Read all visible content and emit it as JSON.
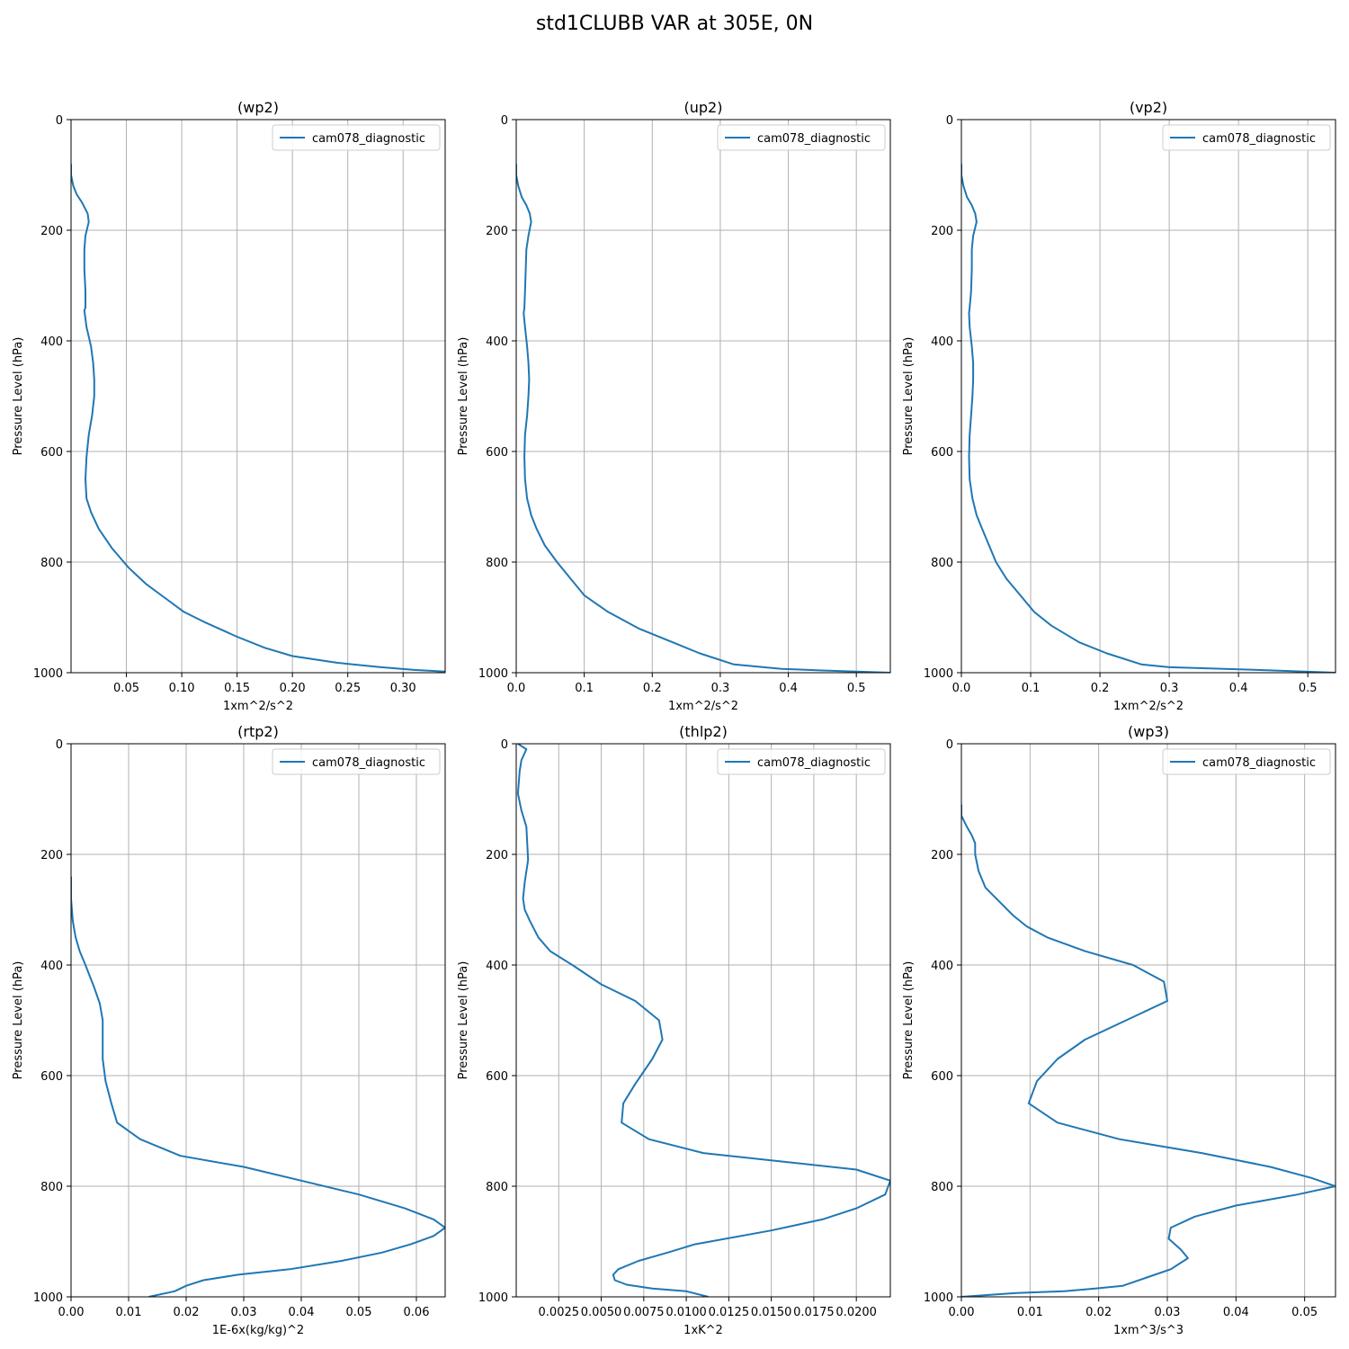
{
  "figure": {
    "title": "std1CLUBB VAR at 305E, 0N"
  },
  "chart_data": [
    {
      "type": "line",
      "title": "(wp2)",
      "xlabel": "1xm^2/s^2",
      "ylabel": "Pressure Level (hPa)",
      "xlim": [
        0,
        0.338
      ],
      "ylim": [
        1000,
        0
      ],
      "xticks": [
        0.05,
        0.1,
        0.15,
        0.2,
        0.25,
        0.3
      ],
      "xtick_labels": [
        "0.05",
        "0.10",
        "0.15",
        "0.20",
        "0.25",
        "0.30"
      ],
      "yticks": [
        0,
        200,
        400,
        600,
        800,
        1000
      ],
      "ytick_labels": [
        "0",
        "200",
        "400",
        "600",
        "800",
        "1000"
      ],
      "grid": true,
      "legend": "upper right",
      "series": [
        {
          "name": "cam078_diagnostic",
          "x": [
            0.0,
            0.0,
            0.002,
            0.005,
            0.01,
            0.015,
            0.016,
            0.013,
            0.012,
            0.012,
            0.013,
            0.013,
            0.012,
            0.014,
            0.018,
            0.02,
            0.021,
            0.021,
            0.019,
            0.016,
            0.014,
            0.013,
            0.014,
            0.018,
            0.025,
            0.037,
            0.052,
            0.068,
            0.085,
            0.102,
            0.122,
            0.15,
            0.175,
            0.2,
            0.24,
            0.28,
            0.31,
            0.338,
            0.332
          ],
          "y": [
            80,
            100,
            120,
            135,
            150,
            170,
            185,
            210,
            235,
            270,
            310,
            340,
            345,
            375,
            410,
            440,
            470,
            500,
            535,
            570,
            610,
            650,
            685,
            710,
            740,
            775,
            810,
            840,
            865,
            890,
            910,
            935,
            955,
            970,
            982,
            990,
            995,
            998,
            1000
          ]
        }
      ]
    },
    {
      "type": "line",
      "title": "(up2)",
      "xlabel": "1xm^2/s^2",
      "ylabel": "Pressure Level (hPa)",
      "xlim": [
        0,
        0.55
      ],
      "ylim": [
        1000,
        0
      ],
      "xticks": [
        0.0,
        0.1,
        0.2,
        0.3,
        0.4,
        0.5
      ],
      "xtick_labels": [
        "0.0",
        "0.1",
        "0.2",
        "0.3",
        "0.4",
        "0.5"
      ],
      "yticks": [
        0,
        200,
        400,
        600,
        800,
        1000
      ],
      "ytick_labels": [
        "0",
        "200",
        "400",
        "600",
        "800",
        "1000"
      ],
      "grid": true,
      "legend": "upper right",
      "series": [
        {
          "name": "cam078_diagnostic",
          "x": [
            0.0,
            0.0,
            0.003,
            0.008,
            0.015,
            0.02,
            0.022,
            0.018,
            0.015,
            0.014,
            0.013,
            0.012,
            0.011,
            0.013,
            0.016,
            0.018,
            0.019,
            0.018,
            0.016,
            0.013,
            0.012,
            0.013,
            0.016,
            0.022,
            0.03,
            0.042,
            0.06,
            0.08,
            0.1,
            0.135,
            0.18,
            0.23,
            0.27,
            0.32,
            0.39,
            0.45,
            0.5,
            0.55
          ],
          "y": [
            80,
            100,
            120,
            140,
            155,
            170,
            185,
            210,
            235,
            270,
            310,
            340,
            350,
            375,
            410,
            440,
            470,
            500,
            535,
            570,
            610,
            650,
            685,
            715,
            740,
            770,
            800,
            830,
            860,
            890,
            920,
            945,
            965,
            985,
            993,
            996,
            998,
            1000
          ]
        }
      ]
    },
    {
      "type": "line",
      "title": "(vp2)",
      "xlabel": "1xm^2/s^2",
      "ylabel": "Pressure Level (hPa)",
      "xlim": [
        0,
        0.54
      ],
      "ylim": [
        1000,
        0
      ],
      "xticks": [
        0.0,
        0.1,
        0.2,
        0.3,
        0.4,
        0.5
      ],
      "xtick_labels": [
        "0.0",
        "0.1",
        "0.2",
        "0.3",
        "0.4",
        "0.5"
      ],
      "yticks": [
        0,
        200,
        400,
        600,
        800,
        1000
      ],
      "ytick_labels": [
        "0",
        "200",
        "400",
        "600",
        "800",
        "1000"
      ],
      "grid": true,
      "legend": "upper right",
      "series": [
        {
          "name": "cam078_diagnostic",
          "x": [
            0.0,
            0.0,
            0.003,
            0.008,
            0.015,
            0.02,
            0.022,
            0.017,
            0.015,
            0.015,
            0.014,
            0.012,
            0.011,
            0.012,
            0.015,
            0.017,
            0.017,
            0.016,
            0.014,
            0.012,
            0.011,
            0.012,
            0.016,
            0.022,
            0.03,
            0.04,
            0.05,
            0.065,
            0.085,
            0.105,
            0.13,
            0.17,
            0.21,
            0.26,
            0.3,
            0.38,
            0.45,
            0.54
          ],
          "y": [
            80,
            100,
            120,
            140,
            155,
            170,
            185,
            210,
            235,
            270,
            310,
            340,
            350,
            375,
            410,
            440,
            470,
            500,
            535,
            570,
            610,
            650,
            685,
            715,
            740,
            770,
            800,
            830,
            860,
            890,
            915,
            945,
            965,
            985,
            990,
            993,
            996,
            1000
          ]
        }
      ]
    },
    {
      "type": "line",
      "title": "(rtp2)",
      "xlabel": "1E-6x(kg/kg)^2",
      "ylabel": "Pressure Level (hPa)",
      "xlim": [
        0,
        0.065
      ],
      "ylim": [
        1000,
        0
      ],
      "xticks": [
        0.0,
        0.01,
        0.02,
        0.03,
        0.04,
        0.05,
        0.06
      ],
      "xtick_labels": [
        "0.00",
        "0.01",
        "0.02",
        "0.03",
        "0.04",
        "0.05",
        "0.06"
      ],
      "yticks": [
        0,
        200,
        400,
        600,
        800,
        1000
      ],
      "ytick_labels": [
        "0",
        "200",
        "400",
        "600",
        "800",
        "1000"
      ],
      "grid": true,
      "legend": "upper right",
      "series": [
        {
          "name": "cam078_diagnostic",
          "x": [
            0.0,
            0.0,
            0.0003,
            0.0008,
            0.0015,
            0.0025,
            0.004,
            0.005,
            0.0055,
            0.0055,
            0.0055,
            0.006,
            0.007,
            0.008,
            0.012,
            0.019,
            0.03,
            0.04,
            0.05,
            0.058,
            0.063,
            0.065,
            0.063,
            0.059,
            0.054,
            0.047,
            0.038,
            0.029,
            0.023,
            0.02,
            0.018,
            0.0135
          ],
          "y": [
            240,
            280,
            320,
            350,
            375,
            400,
            440,
            470,
            500,
            535,
            570,
            610,
            650,
            685,
            715,
            745,
            765,
            790,
            815,
            840,
            860,
            875,
            890,
            905,
            920,
            935,
            950,
            960,
            970,
            980,
            990,
            1000
          ]
        }
      ]
    },
    {
      "type": "line",
      "title": "(thlp2)",
      "xlabel": "1xK^2",
      "ylabel": "Pressure Level (hPa)",
      "xlim": [
        0.0,
        0.022
      ],
      "ylim": [
        1000,
        0
      ],
      "xticks": [
        0.0025,
        0.005,
        0.0075,
        0.01,
        0.0125,
        0.015,
        0.0175,
        0.02
      ],
      "xtick_labels": [
        "0.0025",
        "0.0050",
        "0.0075",
        "0.0100",
        "0.0125",
        "0.0150",
        "0.0175",
        "0.0200"
      ],
      "yticks": [
        0,
        200,
        400,
        600,
        800,
        1000
      ],
      "ytick_labels": [
        "0",
        "200",
        "400",
        "600",
        "800",
        "1000"
      ],
      "grid": true,
      "legend": "upper right",
      "series": [
        {
          "name": "cam078_diagnostic",
          "x": [
            0.0001,
            0.0006,
            0.0003,
            0.0002,
            0.0001,
            0.0003,
            0.0006,
            0.0007,
            0.0005,
            0.0004,
            0.0005,
            0.0008,
            0.0013,
            0.002,
            0.0033,
            0.005,
            0.007,
            0.0084,
            0.0086,
            0.008,
            0.007,
            0.0063,
            0.0062,
            0.0078,
            0.011,
            0.02,
            0.022,
            0.0217,
            0.02,
            0.018,
            0.015,
            0.0105,
            0.0089,
            0.0072,
            0.006,
            0.0057,
            0.0058,
            0.0065,
            0.008,
            0.01,
            0.0113
          ],
          "y": [
            0,
            10,
            30,
            50,
            90,
            120,
            150,
            210,
            250,
            280,
            300,
            320,
            350,
            375,
            400,
            435,
            465,
            500,
            535,
            570,
            615,
            650,
            685,
            715,
            740,
            770,
            790,
            815,
            840,
            860,
            880,
            905,
            920,
            935,
            950,
            960,
            970,
            978,
            985,
            990,
            1000
          ]
        }
      ]
    },
    {
      "type": "line",
      "title": "(wp3)",
      "xlabel": "1xm^3/s^3",
      "ylabel": "Pressure Level (hPa)",
      "xlim": [
        0.0,
        0.0545
      ],
      "ylim": [
        1000,
        0
      ],
      "xticks": [
        0.0,
        0.01,
        0.02,
        0.03,
        0.04,
        0.05
      ],
      "xtick_labels": [
        "0.00",
        "0.01",
        "0.02",
        "0.03",
        "0.04",
        "0.05"
      ],
      "yticks": [
        0,
        200,
        400,
        600,
        800,
        1000
      ],
      "ytick_labels": [
        "0",
        "200",
        "400",
        "600",
        "800",
        "1000"
      ],
      "grid": true,
      "legend": "upper right",
      "series": [
        {
          "name": "cam078_diagnostic",
          "x": [
            0.0,
            0.0,
            0.0008,
            0.0015,
            0.002,
            0.002,
            0.0025,
            0.0035,
            0.0055,
            0.0075,
            0.0095,
            0.0125,
            0.018,
            0.025,
            0.0295,
            0.03,
            0.024,
            0.018,
            0.014,
            0.011,
            0.0098,
            0.014,
            0.023,
            0.035,
            0.045,
            0.051,
            0.0545,
            0.049,
            0.04,
            0.034,
            0.0305,
            0.0302,
            0.032,
            0.033,
            0.0305,
            0.027,
            0.0235,
            0.0195,
            0.015,
            0.008,
            0.0
          ],
          "y": [
            110,
            130,
            150,
            165,
            180,
            200,
            230,
            260,
            285,
            310,
            330,
            350,
            375,
            400,
            430,
            465,
            500,
            535,
            570,
            610,
            650,
            685,
            715,
            740,
            765,
            785,
            800,
            815,
            835,
            855,
            875,
            895,
            915,
            930,
            950,
            965,
            980,
            985,
            990,
            993,
            1000
          ]
        }
      ]
    }
  ]
}
